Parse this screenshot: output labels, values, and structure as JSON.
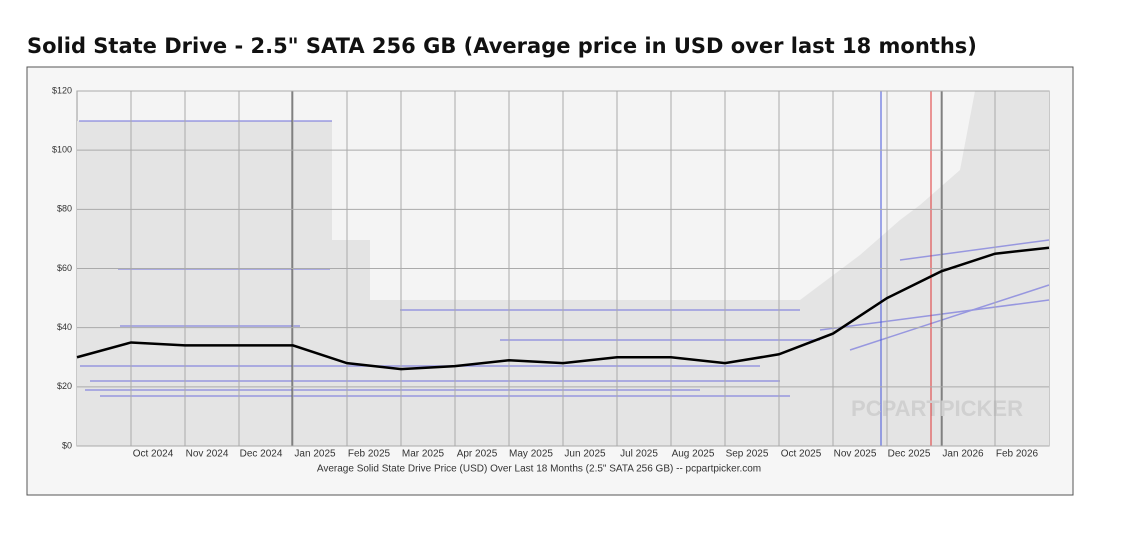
{
  "chart_data": {
    "type": "line",
    "title": "Solid State Drive - 2.5\" SATA 256 GB (Average price in USD over last 18 months)",
    "x_label": "Average Solid State Drive Price (USD) Over Last 18 Months (2.5\" SATA 256 GB) -- pcpartpicker.com",
    "watermark": "PCPARTPICKER",
    "categories": [
      null,
      "Oct 2024",
      "Nov 2024",
      "Dec 2024",
      "Jan 2025",
      "Feb 2025",
      "Mar 2025",
      "Apr 2025",
      "May 2025",
      "Jun 2025",
      "Jul 2025",
      "Aug 2025",
      "Sep 2025",
      "Oct 2025",
      "Nov 2025",
      "Dec 2025",
      "Jan 2026",
      "Feb 2026",
      null
    ],
    "series": [
      {
        "name": "Average price",
        "color": "#000000",
        "values": [
          30,
          35,
          34,
          34,
          34,
          28,
          26,
          27,
          29,
          28,
          30,
          30,
          28,
          31,
          38,
          50,
          59,
          65,
          67
        ]
      }
    ],
    "ylim": [
      0,
      120
    ],
    "yticks": [
      {
        "value": 0,
        "label": "$0"
      },
      {
        "value": 20,
        "label": "$20"
      },
      {
        "value": 40,
        "label": "$40"
      },
      {
        "value": 60,
        "label": "$60"
      },
      {
        "value": 80,
        "label": "$80"
      },
      {
        "value": 100,
        "label": "$100"
      },
      {
        "value": 120,
        "label": "$120"
      }
    ],
    "grid": true
  }
}
